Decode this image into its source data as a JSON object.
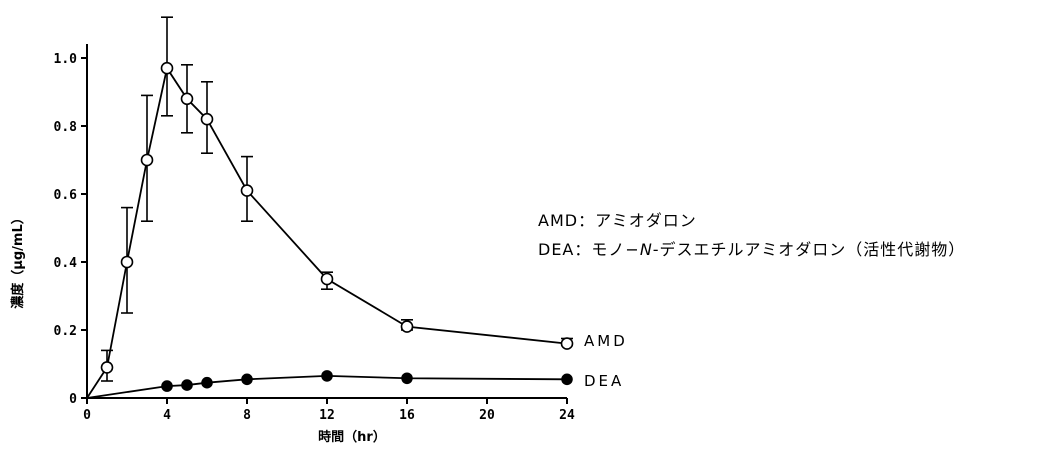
{
  "chart_data": {
    "type": "line",
    "x": [
      1,
      2,
      3,
      4,
      5,
      6,
      8,
      12,
      16,
      24
    ],
    "xlabel": "時間（hr）",
    "ylabel": "濃度（μg/mL）",
    "xlim": [
      0,
      24
    ],
    "ylim": [
      0,
      1.0
    ],
    "xticks": [
      "0",
      "4",
      "8",
      "12",
      "16",
      "20",
      "24"
    ],
    "xtick_values": [
      0,
      4,
      8,
      12,
      16,
      20,
      24
    ],
    "yticks": [
      "0",
      "0.2",
      "0.4",
      "0.6",
      "0.8",
      "1.0"
    ],
    "ytick_values": [
      0,
      0.2,
      0.4,
      0.6,
      0.8,
      1.0
    ],
    "grid": false,
    "series": [
      {
        "name": "AMD",
        "marker": "open-circle",
        "x": [
          0,
          1,
          2,
          3,
          4,
          5,
          6,
          8,
          12,
          16,
          24
        ],
        "values": [
          0,
          0.09,
          0.4,
          0.7,
          0.97,
          0.88,
          0.82,
          0.61,
          0.35,
          0.21,
          0.16
        ],
        "error_upper": [
          null,
          0.14,
          0.56,
          0.89,
          1.12,
          0.98,
          0.93,
          0.71,
          0.37,
          0.23,
          0.175
        ],
        "error_lower": [
          null,
          0.05,
          0.25,
          0.52,
          0.83,
          0.78,
          0.72,
          0.52,
          0.32,
          0.2,
          0.155
        ]
      },
      {
        "name": "DEA",
        "marker": "filled-circle",
        "x": [
          0,
          4,
          5,
          6,
          8,
          12,
          16,
          24
        ],
        "values": [
          0,
          0.035,
          0.038,
          0.045,
          0.055,
          0.065,
          0.058,
          0.055
        ]
      }
    ]
  },
  "legend": {
    "items": [
      {
        "abbr": "AMD",
        "sep": "：",
        "desc": "アミオダロン"
      },
      {
        "abbr": "DEA",
        "sep": "：",
        "desc_prefix": "モノ−",
        "desc_italic": "N",
        "desc_suffix": "-デスエチルアミオダロン（活性代謝物）"
      }
    ]
  }
}
